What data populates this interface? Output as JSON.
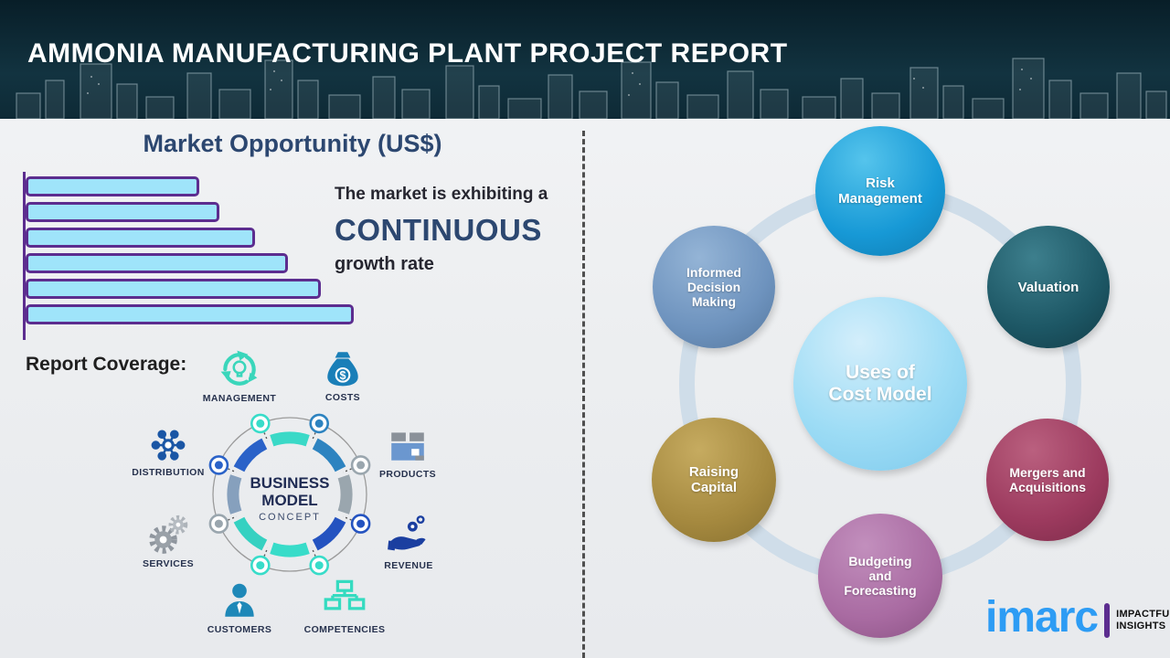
{
  "header": {
    "title": "AMMONIA MANUFACTURING PLANT PROJECT REPORT"
  },
  "left": {
    "section_title": "Market Opportunity (US$)",
    "chart_data": {
      "type": "bar",
      "orientation": "horizontal",
      "title": "Market Opportunity (US$)",
      "values": [
        53,
        59,
        70,
        80,
        90,
        100
      ],
      "value_unit": "relative % (bars unlabeled, estimated from bar lengths)",
      "bar_fill": "#9fe4fa",
      "bar_border": "#5c2d8f",
      "axis_color": "#5c2d8f",
      "grid": false,
      "legend": false
    },
    "statement": {
      "line1": "The market is exhibiting a",
      "emphasis": "CONTINUOUS",
      "line2": "growth rate"
    },
    "report_coverage_label": "Report Coverage:",
    "coverage_items": [
      {
        "label": "MANAGEMENT",
        "icon": "management-cycle-icon"
      },
      {
        "label": "COSTS",
        "icon": "money-bag-icon"
      },
      {
        "label": "DISTRIBUTION",
        "icon": "network-hub-icon"
      },
      {
        "label": "PRODUCTS",
        "icon": "product-box-icon"
      },
      {
        "label": "SERVICES",
        "icon": "gears-icon"
      },
      {
        "label": "REVENUE",
        "icon": "hand-coins-icon"
      },
      {
        "label": "CUSTOMERS",
        "icon": "person-icon"
      },
      {
        "label": "COMPETENCIES",
        "icon": "org-chart-icon"
      }
    ],
    "business_model": {
      "title_line1": "BUSINESS",
      "title_line2": "MODEL",
      "subtitle": "CONCEPT"
    }
  },
  "right": {
    "center_node": {
      "label": "Uses of\nCost Model",
      "color": "#8fd7f3"
    },
    "nodes": [
      {
        "label": "Risk\nManagement",
        "color": "#1799d6"
      },
      {
        "label": "Valuation",
        "color": "#1d5765"
      },
      {
        "label": "Informed\nDecision\nMaking",
        "color": "#6e93be"
      },
      {
        "label": "Raising\nCapital",
        "color": "#a5893f"
      },
      {
        "label": "Mergers and\nAcquisitions",
        "color": "#9c3a5e"
      },
      {
        "label": "Budgeting\nand\nForecasting",
        "color": "#a96ba2"
      }
    ]
  },
  "logo": {
    "brand": "imarc",
    "tagline_line1": "IMPACTFUL",
    "tagline_line2": "INSIGHTS",
    "brand_color": "#2d9cf4"
  },
  "palette": {
    "header_bg": "#0e2a36",
    "navy_text": "#2c4770",
    "teal_icon": "#3ad6bb",
    "blue_icon": "#1a7fb8",
    "ring_color": "#cfdde9"
  }
}
